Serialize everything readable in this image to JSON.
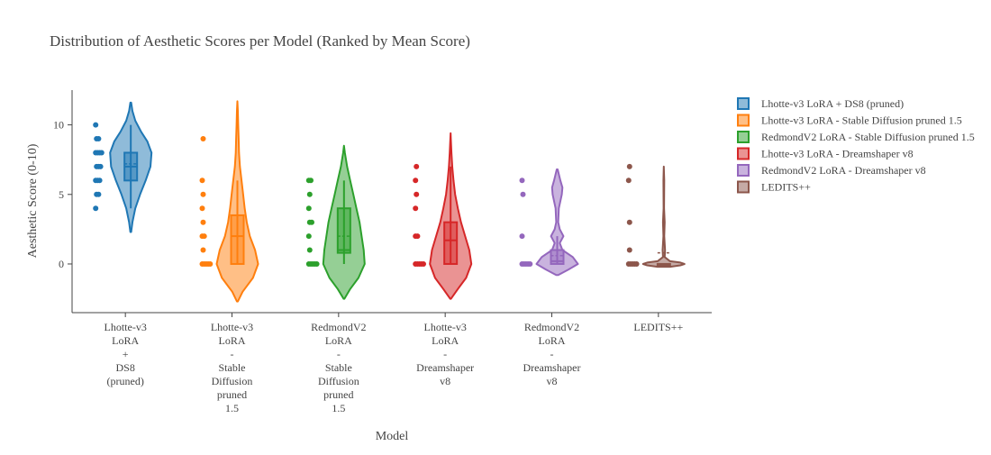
{
  "chart_data": {
    "type": "violin",
    "title": "Distribution of Aesthetic Scores per Model (Ranked by Mean Score)",
    "xlabel": "Model",
    "ylabel": "Aesthetic Score (0-10)",
    "ylim": [
      -3.5,
      12.5
    ],
    "yticks": [
      0,
      5,
      10
    ],
    "grid": false,
    "legend_position": "right",
    "categories": [
      {
        "lines": [
          "Lhotte-v3",
          "LoRA",
          "+",
          "DS8",
          "(pruned)"
        ]
      },
      {
        "lines": [
          "Lhotte-v3",
          "LoRA",
          "-",
          "Stable",
          "Diffusion",
          "pruned",
          "1.5"
        ]
      },
      {
        "lines": [
          "RedmondV2",
          "LoRA",
          "-",
          "Stable",
          "Diffusion",
          "pruned",
          "1.5"
        ]
      },
      {
        "lines": [
          "Lhotte-v3",
          "LoRA",
          "-",
          "Dreamshaper",
          "v8"
        ]
      },
      {
        "lines": [
          "RedmondV2",
          "LoRA",
          "-",
          "Dreamshaper",
          "v8"
        ]
      },
      {
        "lines": [
          "LEDITS++"
        ]
      }
    ],
    "series": [
      {
        "name": "Lhotte-v3 LoRA + DS8 (pruned)",
        "color": "#1f77b4",
        "points": [
          4,
          5,
          5,
          6,
          6,
          6,
          7,
          7,
          7,
          8,
          8,
          8,
          8,
          9,
          9,
          10
        ],
        "box": {
          "q1": 6,
          "median": 7,
          "q3": 8,
          "mean": 7.2,
          "whisker_low": 4,
          "whisker_high": 10
        },
        "violin_range": [
          2.3,
          11.6
        ],
        "density": [
          [
            2.3,
            0.02
          ],
          [
            3,
            0.08
          ],
          [
            4,
            0.22
          ],
          [
            5,
            0.45
          ],
          [
            6,
            0.72
          ],
          [
            7,
            0.95
          ],
          [
            8,
            1.0
          ],
          [
            8.8,
            0.8
          ],
          [
            9.5,
            0.5
          ],
          [
            10.3,
            0.22
          ],
          [
            11,
            0.08
          ],
          [
            11.6,
            0.02
          ]
        ]
      },
      {
        "name": "Lhotte-v3 LoRA - Stable Diffusion pruned 1.5",
        "color": "#ff7f0e",
        "points": [
          0,
          0,
          0,
          0,
          0,
          1,
          2,
          2,
          3,
          4,
          5,
          6,
          9
        ],
        "box": {
          "q1": 0,
          "median": 2,
          "q3": 3.5,
          "mean": 2.0,
          "whisker_low": 0,
          "whisker_high": 6
        },
        "violin_range": [
          -2.7,
          11.7
        ],
        "density": [
          [
            -2.7,
            0.02
          ],
          [
            -2,
            0.25
          ],
          [
            -1,
            0.75
          ],
          [
            0,
            1.0
          ],
          [
            1,
            0.85
          ],
          [
            2,
            0.6
          ],
          [
            3,
            0.45
          ],
          [
            4,
            0.35
          ],
          [
            5,
            0.28
          ],
          [
            6,
            0.2
          ],
          [
            7,
            0.12
          ],
          [
            8,
            0.08
          ],
          [
            9,
            0.06
          ],
          [
            10,
            0.04
          ],
          [
            11,
            0.02
          ],
          [
            11.7,
            0.0
          ]
        ]
      },
      {
        "name": "RedmondV2 LoRA - Stable Diffusion pruned 1.5",
        "color": "#2ca02c",
        "points": [
          0,
          0,
          0,
          0,
          0,
          1,
          2,
          3,
          3,
          4,
          5,
          6,
          6
        ],
        "box": {
          "q1": 0.8,
          "median": 1.0,
          "q3": 4,
          "mean": 2.0,
          "whisker_low": 0,
          "whisker_high": 6
        },
        "violin_range": [
          -2.5,
          8.5
        ],
        "density": [
          [
            -2.5,
            0.02
          ],
          [
            -1.8,
            0.3
          ],
          [
            -1,
            0.7
          ],
          [
            0,
            1.0
          ],
          [
            1,
            0.95
          ],
          [
            2,
            0.85
          ],
          [
            3,
            0.75
          ],
          [
            4,
            0.6
          ],
          [
            5,
            0.45
          ],
          [
            6,
            0.3
          ],
          [
            7,
            0.15
          ],
          [
            8,
            0.04
          ],
          [
            8.5,
            0.0
          ]
        ]
      },
      {
        "name": "Lhotte-v3 LoRA - Dreamshaper v8",
        "color": "#d62728",
        "points": [
          0,
          0,
          0,
          0,
          0,
          2,
          2,
          4,
          5,
          6,
          7
        ],
        "box": {
          "q1": 0,
          "median": 1.7,
          "q3": 3,
          "mean": 1.7,
          "whisker_low": 0,
          "whisker_high": 7
        },
        "violin_range": [
          -2.5,
          9.4
        ],
        "density": [
          [
            -2.5,
            0.02
          ],
          [
            -1.8,
            0.35
          ],
          [
            -1,
            0.75
          ],
          [
            0,
            1.0
          ],
          [
            1,
            0.9
          ],
          [
            2,
            0.7
          ],
          [
            3,
            0.5
          ],
          [
            4,
            0.35
          ],
          [
            5,
            0.22
          ],
          [
            6,
            0.14
          ],
          [
            7,
            0.08
          ],
          [
            8,
            0.04
          ],
          [
            9,
            0.01
          ],
          [
            9.4,
            0.0
          ]
        ]
      },
      {
        "name": "RedmondV2 LoRA - Dreamshaper v8",
        "color": "#9467bd",
        "points": [
          0,
          0,
          0,
          0,
          0,
          2,
          5,
          6
        ],
        "box": {
          "q1": 0,
          "median": 0.2,
          "q3": 1,
          "mean": 0.6,
          "whisker_low": 0,
          "whisker_high": 2
        },
        "violin_range": [
          -0.8,
          6.8
        ],
        "density": [
          [
            -0.8,
            0.05
          ],
          [
            -0.4,
            0.55
          ],
          [
            0,
            1.0
          ],
          [
            0.5,
            0.75
          ],
          [
            1,
            0.25
          ],
          [
            1.5,
            0.12
          ],
          [
            2,
            0.3
          ],
          [
            2.5,
            0.12
          ],
          [
            3,
            0.05
          ],
          [
            4,
            0.08
          ],
          [
            5,
            0.22
          ],
          [
            5.5,
            0.25
          ],
          [
            6,
            0.15
          ],
          [
            6.8,
            0.02
          ]
        ]
      },
      {
        "name": "LEDITS++",
        "color": "#8c564b",
        "points": [
          0,
          0,
          0,
          0,
          0,
          1,
          3,
          6,
          7
        ],
        "box": {
          "q1": 0,
          "median": 0,
          "q3": 0,
          "mean": 0.8,
          "whisker_low": 0,
          "whisker_high": 0
        },
        "violin_range": [
          -0.2,
          7.0
        ],
        "density": [
          [
            -0.2,
            0.3
          ],
          [
            -0.1,
            0.8
          ],
          [
            0,
            1.0
          ],
          [
            0.1,
            0.8
          ],
          [
            0.2,
            0.3
          ],
          [
            0.5,
            0.04
          ],
          [
            1,
            0.06
          ],
          [
            2,
            0.02
          ],
          [
            3,
            0.04
          ],
          [
            4,
            0.01
          ],
          [
            6,
            0.02
          ],
          [
            7,
            0.0
          ]
        ]
      }
    ]
  }
}
